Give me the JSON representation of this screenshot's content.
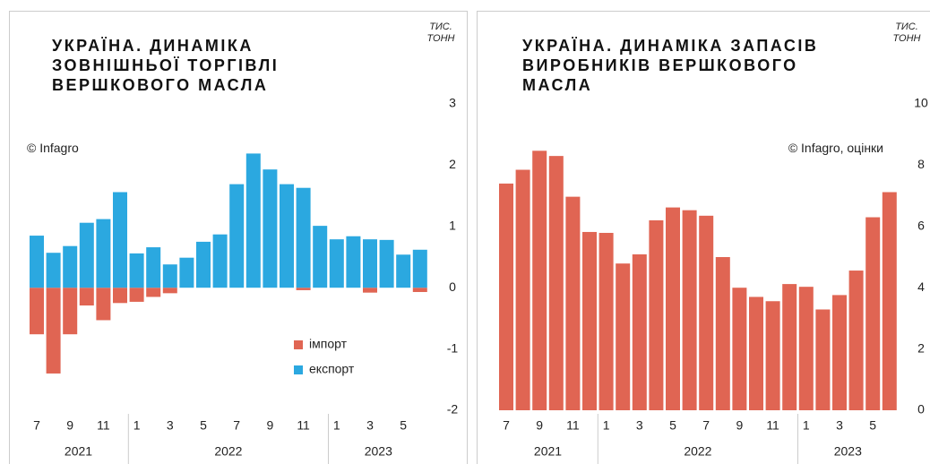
{
  "chart_data": [
    {
      "type": "bar",
      "title": [
        "УКРАЇНА. ДИНАМІКА",
        "ЗОВНІШНЬОЇ ТОРГІВЛІ",
        "ВЕРШКОВОГО МАСЛА"
      ],
      "unit": "ТИС. ТОНН",
      "source": "© Infagro",
      "categories": [
        "7",
        null,
        "9",
        null,
        "11",
        null,
        "1",
        null,
        "3",
        null,
        "5",
        null,
        "7",
        null,
        "9",
        null,
        "11",
        null,
        "1",
        null,
        "3",
        null,
        "5",
        null
      ],
      "years": [
        "2021",
        "2022",
        "2023"
      ],
      "series": [
        {
          "name": "імпорт",
          "color": "#e06553",
          "values": [
            -0.76,
            -1.4,
            -0.76,
            -0.29,
            -0.53,
            -0.25,
            -0.23,
            -0.15,
            -0.09,
            0,
            0,
            0,
            0,
            0,
            0,
            0,
            -0.04,
            0,
            0,
            0,
            -0.08,
            0,
            0,
            -0.07
          ]
        },
        {
          "name": "експорт",
          "color": "#2ba8e0",
          "values": [
            0.85,
            0.57,
            0.68,
            1.06,
            1.12,
            1.56,
            0.56,
            0.66,
            0.38,
            0.49,
            0.75,
            0.87,
            1.69,
            2.19,
            1.93,
            1.69,
            1.63,
            1.01,
            0.79,
            0.84,
            0.79,
            0.78,
            0.54,
            0.62
          ]
        }
      ],
      "ylim": [
        -2,
        3
      ],
      "yticks": [
        -2,
        -1,
        0,
        1,
        2,
        3
      ],
      "legend": "lower right"
    },
    {
      "type": "bar",
      "title": [
        "УКРАЇНА. ДИНАМІКА ЗАПАСІВ",
        "ВИРОБНИКІВ ВЕРШКОВОГО",
        "МАСЛА"
      ],
      "unit": "ТИС. ТОНН",
      "source": "© Infagro, оцінки",
      "categories": [
        "7",
        null,
        "9",
        null,
        "11",
        null,
        "1",
        null,
        "3",
        null,
        "5",
        null,
        "7",
        null,
        "9",
        null,
        "11",
        null,
        "1",
        null,
        "3",
        null,
        "5",
        null
      ],
      "years": [
        "2021",
        "2022",
        "2023"
      ],
      "color": "#e06553",
      "values": [
        7.4,
        7.85,
        8.47,
        8.3,
        6.97,
        5.82,
        5.79,
        4.79,
        5.09,
        6.2,
        6.62,
        6.53,
        6.35,
        5.0,
        4.0,
        3.7,
        3.56,
        4.12,
        4.03,
        3.29,
        3.76,
        4.56,
        6.3,
        7.12
      ],
      "ylim": [
        0,
        10
      ],
      "yticks": [
        0,
        2,
        4,
        6,
        8,
        10
      ]
    }
  ]
}
